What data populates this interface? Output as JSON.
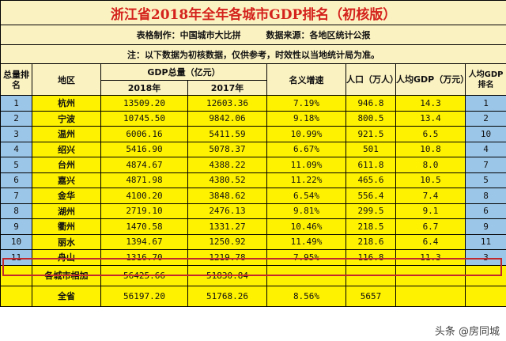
{
  "title": "浙江省2018年全年各城市GDP排名（初核版）",
  "meta": {
    "made_by": "表格制作：中国城市大比拼",
    "source": "数据来源：各地区统计公报"
  },
  "note": "注：以下数据为初核数据，仅供参考，时效性以当地统计局为准。",
  "headers": {
    "rank": "总量排名",
    "region": "地区",
    "gdp": "GDP总量（亿元）",
    "y2018": "2018年",
    "y2017": "2017年",
    "growth": "名义增速",
    "population": "人口（万人）",
    "gdp_per_capita": "人均GDP（万元）",
    "per_capita_rank": "人均GDP排名"
  },
  "rows": [
    {
      "rank": "1",
      "city": "杭州",
      "gdp2018": "13509.20",
      "gdp2017": "12603.36",
      "growth": "7.19%",
      "pop": "946.8",
      "per": "14.3",
      "prank": "1"
    },
    {
      "rank": "2",
      "city": "宁波",
      "gdp2018": "10745.50",
      "gdp2017": "9842.06",
      "growth": "9.18%",
      "pop": "800.5",
      "per": "13.4",
      "prank": "2"
    },
    {
      "rank": "3",
      "city": "温州",
      "gdp2018": "6006.16",
      "gdp2017": "5411.59",
      "growth": "10.99%",
      "pop": "921.5",
      "per": "6.5",
      "prank": "10"
    },
    {
      "rank": "4",
      "city": "绍兴",
      "gdp2018": "5416.90",
      "gdp2017": "5078.37",
      "growth": "6.67%",
      "pop": "501",
      "per": "10.8",
      "prank": "4"
    },
    {
      "rank": "5",
      "city": "台州",
      "gdp2018": "4874.67",
      "gdp2017": "4388.22",
      "growth": "11.09%",
      "pop": "611.8",
      "per": "8.0",
      "prank": "7"
    },
    {
      "rank": "6",
      "city": "嘉兴",
      "gdp2018": "4871.98",
      "gdp2017": "4380.52",
      "growth": "11.22%",
      "pop": "465.6",
      "per": "10.5",
      "prank": "5"
    },
    {
      "rank": "7",
      "city": "金华",
      "gdp2018": "4100.20",
      "gdp2017": "3848.62",
      "growth": "6.54%",
      "pop": "556.4",
      "per": "7.4",
      "prank": "8"
    },
    {
      "rank": "8",
      "city": "湖州",
      "gdp2018": "2719.10",
      "gdp2017": "2476.13",
      "growth": "9.81%",
      "pop": "299.5",
      "per": "9.1",
      "prank": "6"
    },
    {
      "rank": "9",
      "city": "衢州",
      "gdp2018": "1470.58",
      "gdp2017": "1331.27",
      "growth": "10.46%",
      "pop": "218.5",
      "per": "6.7",
      "prank": "9"
    },
    {
      "rank": "10",
      "city": "丽水",
      "gdp2018": "1394.67",
      "gdp2017": "1250.92",
      "growth": "11.49%",
      "pop": "218.6",
      "per": "6.4",
      "prank": "11"
    },
    {
      "rank": "11",
      "city": "舟山",
      "gdp2018": "1316.70",
      "gdp2017": "1219.78",
      "growth": "7.95%",
      "pop": "116.8",
      "per": "11.3",
      "prank": "3"
    }
  ],
  "sum_row": {
    "label": "各城市相加",
    "gdp2018": "56425.66",
    "gdp2017": "51830.84"
  },
  "total_row": {
    "label": "全省",
    "gdp2018": "56197.20",
    "gdp2017": "51768.26",
    "growth": "8.56%",
    "pop": "5657"
  },
  "watermark": "头条 @房同城",
  "colors": {
    "title_text": "#d4221c",
    "yellow": "#fff200",
    "blue": "#9cc6e8",
    "cream": "#fbf2c2",
    "highlight": "#c0282d"
  }
}
